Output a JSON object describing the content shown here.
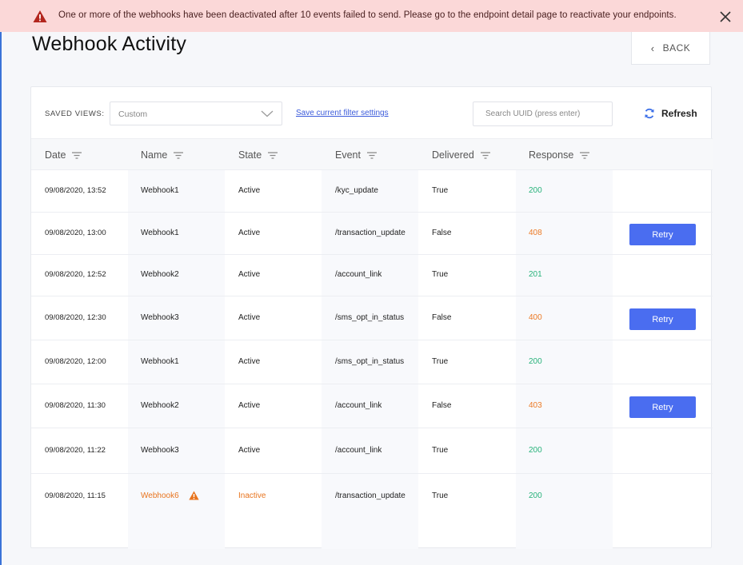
{
  "banner": {
    "message": "One or more of the webhooks have been deactivated after 10 events failed to send. Please go to the endpoint detail page to reactivate your endpoints.",
    "icon": "warning-icon",
    "close_icon": "close-icon"
  },
  "page": {
    "title": "Webhook Activity",
    "back_label": "BACK"
  },
  "toolbar": {
    "saved_views_label": "SAVED VIEWS:",
    "saved_views_value": "Custom",
    "save_link": "Save current filter settings",
    "search_placeholder": "Search UUID (press enter)",
    "refresh_label": "Refresh"
  },
  "table": {
    "columns": [
      "Date",
      "Name",
      "State",
      "Event",
      "Delivered",
      "Response"
    ],
    "retry_label": "Retry",
    "rows": [
      {
        "date": "09/08/2020, 13:52",
        "name": "Webhook1",
        "state": "Active",
        "event": "/kyc_update",
        "delivered": "True",
        "response": "200",
        "retry": false,
        "inactive": false
      },
      {
        "date": "09/08/2020, 13:00",
        "name": "Webhook1",
        "state": "Active",
        "event": "/transaction_update",
        "delivered": "False",
        "response": "408",
        "retry": true,
        "inactive": false
      },
      {
        "date": "09/08/2020, 12:52",
        "name": "Webhook2",
        "state": "Active",
        "event": "/account_link",
        "delivered": "True",
        "response": "201",
        "retry": false,
        "inactive": false
      },
      {
        "date": "09/08/2020, 12:30",
        "name": "Webhook3",
        "state": "Active",
        "event": "/sms_opt_in_status",
        "delivered": "False",
        "response": "400",
        "retry": true,
        "inactive": false
      },
      {
        "date": "09/08/2020, 12:00",
        "name": "Webhook1",
        "state": "Active",
        "event": "/sms_opt_in_status",
        "delivered": "True",
        "response": "200",
        "retry": false,
        "inactive": false
      },
      {
        "date": "09/08/2020, 11:30",
        "name": "Webhook2",
        "state": "Active",
        "event": "/account_link",
        "delivered": "False",
        "response": "403",
        "retry": true,
        "inactive": false
      },
      {
        "date": "09/08/2020, 11:22",
        "name": "Webhook3",
        "state": "Active",
        "event": "/account_link",
        "delivered": "True",
        "response": "200",
        "retry": false,
        "inactive": false
      },
      {
        "date": "09/08/2020, 11:15",
        "name": "Webhook6",
        "state": "Inactive",
        "event": "/transaction_update",
        "delivered": "True",
        "response": "200",
        "retry": false,
        "inactive": true
      }
    ]
  },
  "colors": {
    "banner_bg": "#fbd8d8",
    "accent": "#4a6df0",
    "success": "#27b27a",
    "error": "#ec7a25",
    "warning": "#e8741e"
  }
}
